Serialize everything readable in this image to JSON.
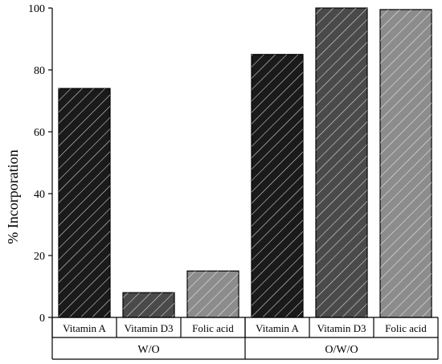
{
  "chart_data": {
    "type": "bar",
    "title": "",
    "xlabel": "",
    "ylabel": "% Incorporation",
    "ylim": [
      0,
      100
    ],
    "yticks": [
      0,
      20,
      40,
      60,
      80,
      100
    ],
    "groups": [
      {
        "name": "W/O",
        "categories": [
          "Vitamin A",
          "Vitamin D3",
          "Folic acid"
        ],
        "values": [
          74,
          8,
          15
        ]
      },
      {
        "name": "O/W/O",
        "categories": [
          "Vitamin A",
          "Vitamin D3",
          "Folic acid"
        ],
        "values": [
          85,
          100,
          99.5
        ]
      }
    ],
    "bar_colors": [
      "#1a1a1a",
      "#4a4a4a",
      "#8c8c8c"
    ],
    "pattern": "diagonal-hatch",
    "grid": false,
    "legend": "none"
  }
}
